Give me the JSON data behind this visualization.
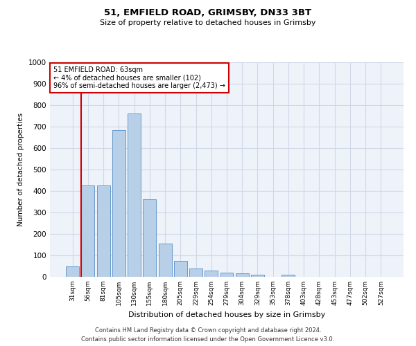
{
  "title1": "51, EMFIELD ROAD, GRIMSBY, DN33 3BT",
  "title2": "Size of property relative to detached houses in Grimsby",
  "xlabel": "Distribution of detached houses by size in Grimsby",
  "ylabel": "Number of detached properties",
  "footnote1": "Contains HM Land Registry data © Crown copyright and database right 2024.",
  "footnote2": "Contains public sector information licensed under the Open Government Licence v3.0.",
  "categories": [
    "31sqm",
    "56sqm",
    "81sqm",
    "105sqm",
    "130sqm",
    "155sqm",
    "180sqm",
    "205sqm",
    "229sqm",
    "254sqm",
    "279sqm",
    "304sqm",
    "329sqm",
    "353sqm",
    "378sqm",
    "403sqm",
    "428sqm",
    "453sqm",
    "477sqm",
    "502sqm",
    "527sqm"
  ],
  "values": [
    50,
    425,
    425,
    685,
    760,
    360,
    155,
    75,
    40,
    30,
    20,
    15,
    10,
    0,
    10,
    0,
    0,
    0,
    0,
    0,
    0
  ],
  "bar_color": "#b8cfe8",
  "bar_edge_color": "#6699cc",
  "grid_color": "#d0d8e8",
  "background_color": "#eef2f9",
  "vline_color": "#cc0000",
  "vline_x_index": 1,
  "annotation_text": "51 EMFIELD ROAD: 63sqm\n← 4% of detached houses are smaller (102)\n96% of semi-detached houses are larger (2,473) →",
  "annotation_box_color": "#ffffff",
  "annotation_box_edge": "#cc0000",
  "ylim": [
    0,
    1000
  ],
  "yticks": [
    0,
    100,
    200,
    300,
    400,
    500,
    600,
    700,
    800,
    900,
    1000
  ]
}
